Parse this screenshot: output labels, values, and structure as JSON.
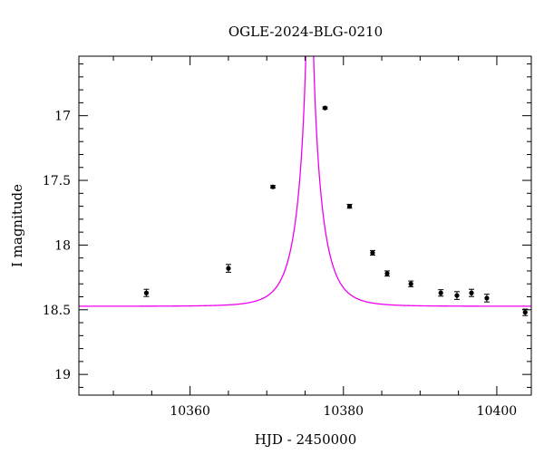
{
  "chart_data": {
    "type": "scatter",
    "title": "OGLE-2024-BLG-0210",
    "xlabel": "HJD - 2450000",
    "ylabel": "I magnitude",
    "xlim": [
      10345.5,
      10404.5
    ],
    "ylim": [
      19.16,
      16.54
    ],
    "y_inverted": true,
    "xticks": [
      10360,
      10380,
      10400
    ],
    "xtick_labels": [
      "10360",
      "10380",
      "10400"
    ],
    "yticks": [
      17,
      17.5,
      18,
      18.5,
      19
    ],
    "ytick_labels": [
      "17",
      "17.5",
      "18",
      "18.5",
      "19"
    ],
    "grid": false,
    "colors": {
      "model": "#ee00ee",
      "points": "#000000",
      "frame": "#000000"
    },
    "series": [
      {
        "kind": "points_with_errorbars",
        "x": [
          10354.3,
          10365.0,
          10370.8,
          10377.6,
          10380.8,
          10383.8,
          10385.7,
          10388.8,
          10392.7,
          10394.8,
          10396.7,
          10398.7,
          10403.7
        ],
        "y": [
          18.37,
          18.18,
          17.55,
          16.94,
          17.7,
          18.06,
          18.22,
          18.3,
          18.37,
          18.39,
          18.37,
          18.41,
          18.52
        ],
        "err": [
          0.028,
          0.03,
          0.01,
          0.008,
          0.015,
          0.018,
          0.02,
          0.022,
          0.025,
          0.03,
          0.028,
          0.03,
          0.025
        ]
      },
      {
        "kind": "model_curve",
        "model": "PSPL",
        "t0": 10375.6,
        "u0": 0.02,
        "tE": 3.0,
        "I_base": 18.473
      }
    ]
  }
}
